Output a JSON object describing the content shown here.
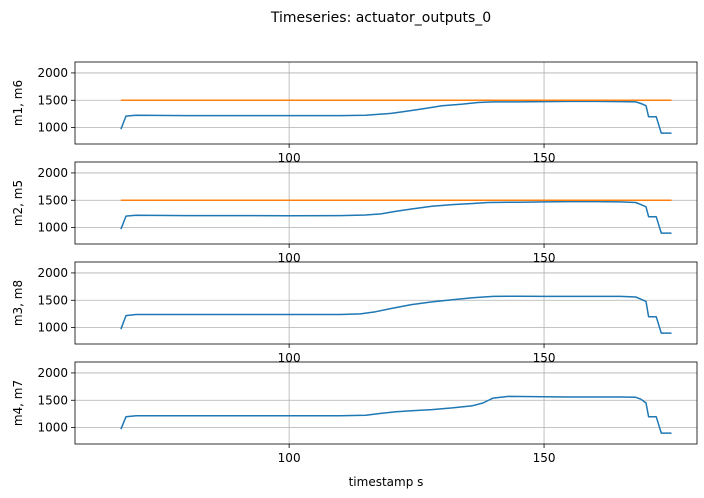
{
  "figure": {
    "title": "Timeseries: actuator_outputs_0",
    "xlabel": "timestamp s"
  },
  "colors": {
    "series_primary": "#1f77b4",
    "series_secondary": "#ff7f0e",
    "grid": "#b0b0b0",
    "axes": "#000000"
  },
  "chart_data": [
    {
      "type": "line",
      "ylabel": "m1, m6",
      "xlim": [
        58,
        180
      ],
      "ylim": [
        700,
        2200
      ],
      "xticks": [
        100,
        150
      ],
      "yticks": [
        1000,
        1500,
        2000
      ],
      "grid": true,
      "series": [
        {
          "values": [
            [
              67,
              970
            ],
            [
              68,
              1210
            ],
            [
              70,
              1225
            ],
            [
              80,
              1220
            ],
            [
              90,
              1220
            ],
            [
              100,
              1220
            ],
            [
              110,
              1220
            ],
            [
              115,
              1225
            ],
            [
              117,
              1240
            ],
            [
              120,
              1260
            ],
            [
              123,
              1300
            ],
            [
              126,
              1340
            ],
            [
              130,
              1400
            ],
            [
              134,
              1430
            ],
            [
              137,
              1460
            ],
            [
              140,
              1470
            ],
            [
              145,
              1470
            ],
            [
              150,
              1475
            ],
            [
              155,
              1480
            ],
            [
              160,
              1480
            ],
            [
              165,
              1475
            ],
            [
              168,
              1470
            ],
            [
              169,
              1440
            ],
            [
              170,
              1400
            ],
            [
              170.5,
              1200
            ],
            [
              172,
              1200
            ],
            [
              173,
              900
            ],
            [
              175,
              900
            ]
          ]
        },
        {
          "values": [
            [
              67,
              1500
            ],
            [
              175,
              1500
            ]
          ]
        }
      ]
    },
    {
      "type": "line",
      "ylabel": "m2, m5",
      "xlim": [
        58,
        180
      ],
      "ylim": [
        700,
        2200
      ],
      "xticks": [
        100,
        150
      ],
      "yticks": [
        1000,
        1500,
        2000
      ],
      "grid": true,
      "series": [
        {
          "values": [
            [
              67,
              970
            ],
            [
              68,
              1210
            ],
            [
              70,
              1225
            ],
            [
              80,
              1220
            ],
            [
              90,
              1220
            ],
            [
              100,
              1215
            ],
            [
              110,
              1220
            ],
            [
              115,
              1230
            ],
            [
              118,
              1250
            ],
            [
              121,
              1300
            ],
            [
              124,
              1340
            ],
            [
              128,
              1390
            ],
            [
              132,
              1420
            ],
            [
              136,
              1440
            ],
            [
              139,
              1460
            ],
            [
              145,
              1465
            ],
            [
              150,
              1470
            ],
            [
              155,
              1475
            ],
            [
              160,
              1475
            ],
            [
              165,
              1470
            ],
            [
              168,
              1460
            ],
            [
              169,
              1420
            ],
            [
              170,
              1380
            ],
            [
              170.5,
              1200
            ],
            [
              172,
              1200
            ],
            [
              173,
              900
            ],
            [
              175,
              900
            ]
          ]
        },
        {
          "values": [
            [
              67,
              1500
            ],
            [
              175,
              1500
            ]
          ]
        }
      ]
    },
    {
      "type": "line",
      "ylabel": "m3, m8",
      "xlim": [
        58,
        180
      ],
      "ylim": [
        700,
        2200
      ],
      "xticks": [
        100,
        150
      ],
      "yticks": [
        1000,
        1500,
        2000
      ],
      "grid": true,
      "series": [
        {
          "values": [
            [
              67,
              970
            ],
            [
              68,
              1220
            ],
            [
              70,
              1240
            ],
            [
              80,
              1240
            ],
            [
              90,
              1240
            ],
            [
              100,
              1240
            ],
            [
              110,
              1240
            ],
            [
              114,
              1250
            ],
            [
              117,
              1290
            ],
            [
              120,
              1350
            ],
            [
              124,
              1420
            ],
            [
              128,
              1470
            ],
            [
              132,
              1510
            ],
            [
              136,
              1545
            ],
            [
              140,
              1570
            ],
            [
              145,
              1575
            ],
            [
              150,
              1570
            ],
            [
              155,
              1570
            ],
            [
              160,
              1570
            ],
            [
              165,
              1570
            ],
            [
              168,
              1560
            ],
            [
              169,
              1520
            ],
            [
              170,
              1480
            ],
            [
              170.5,
              1200
            ],
            [
              172,
              1200
            ],
            [
              173,
              900
            ],
            [
              175,
              900
            ]
          ]
        }
      ]
    },
    {
      "type": "line",
      "ylabel": "m4, m7",
      "xlim": [
        58,
        180
      ],
      "ylim": [
        700,
        2200
      ],
      "xticks": [
        100,
        150
      ],
      "yticks": [
        1000,
        1500,
        2000
      ],
      "grid": true,
      "series": [
        {
          "values": [
            [
              67,
              970
            ],
            [
              68,
              1200
            ],
            [
              70,
              1215
            ],
            [
              80,
              1215
            ],
            [
              90,
              1215
            ],
            [
              100,
              1215
            ],
            [
              110,
              1215
            ],
            [
              115,
              1225
            ],
            [
              118,
              1260
            ],
            [
              121,
              1290
            ],
            [
              124,
              1310
            ],
            [
              128,
              1330
            ],
            [
              132,
              1360
            ],
            [
              136,
              1400
            ],
            [
              138,
              1450
            ],
            [
              140,
              1540
            ],
            [
              143,
              1570
            ],
            [
              150,
              1565
            ],
            [
              155,
              1560
            ],
            [
              160,
              1560
            ],
            [
              165,
              1560
            ],
            [
              168,
              1555
            ],
            [
              169,
              1520
            ],
            [
              170,
              1450
            ],
            [
              170.5,
              1200
            ],
            [
              172,
              1200
            ],
            [
              173,
              900
            ],
            [
              175,
              900
            ]
          ]
        }
      ]
    }
  ]
}
